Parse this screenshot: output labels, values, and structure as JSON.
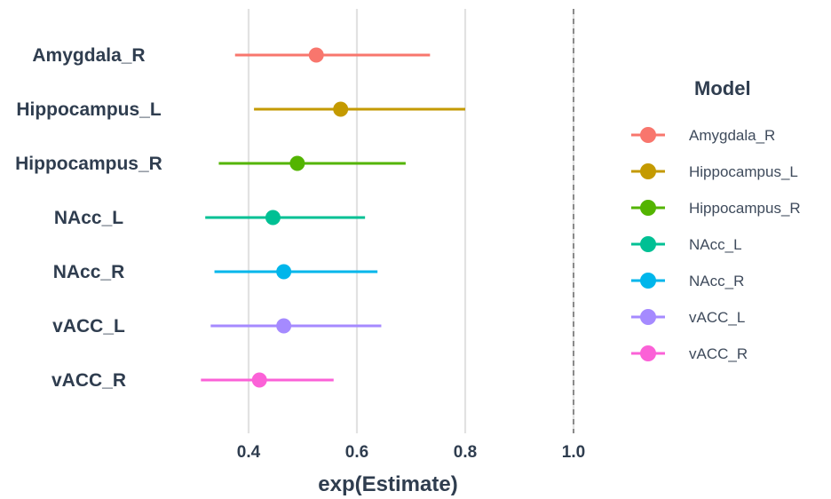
{
  "chart_data": {
    "type": "scatter",
    "subtype": "forest-plot",
    "xlabel": "exp(Estimate)",
    "ylabel": "",
    "xlim": [
      0.18,
      1.08
    ],
    "xticks": [
      0.4,
      0.6,
      0.8,
      1.0
    ],
    "xtick_labels": [
      "0.4",
      "0.6",
      "0.8",
      "1.0"
    ],
    "reference_line": {
      "x": 1.0,
      "style": "dashed"
    },
    "grid": "vertical major lines",
    "legend": {
      "title": "Model",
      "placement": "right"
    },
    "series": [
      {
        "name": "Amygdala_R",
        "estimate": 0.525,
        "lower": 0.375,
        "upper": 0.735,
        "color": "#F8766D"
      },
      {
        "name": "Hippocampus_L",
        "estimate": 0.57,
        "lower": 0.41,
        "upper": 0.8,
        "color": "#C49A00"
      },
      {
        "name": "Hippocampus_R",
        "estimate": 0.49,
        "lower": 0.345,
        "upper": 0.69,
        "color": "#53B400"
      },
      {
        "name": "NAcc_L",
        "estimate": 0.445,
        "lower": 0.32,
        "upper": 0.615,
        "color": "#00C094"
      },
      {
        "name": "NAcc_R",
        "estimate": 0.465,
        "lower": 0.337,
        "upper": 0.638,
        "color": "#00B6EB"
      },
      {
        "name": "vACC_L",
        "estimate": 0.465,
        "lower": 0.33,
        "upper": 0.645,
        "color": "#A58AFF"
      },
      {
        "name": "vACC_R",
        "estimate": 0.42,
        "lower": 0.312,
        "upper": 0.557,
        "color": "#FB61D7"
      }
    ]
  }
}
